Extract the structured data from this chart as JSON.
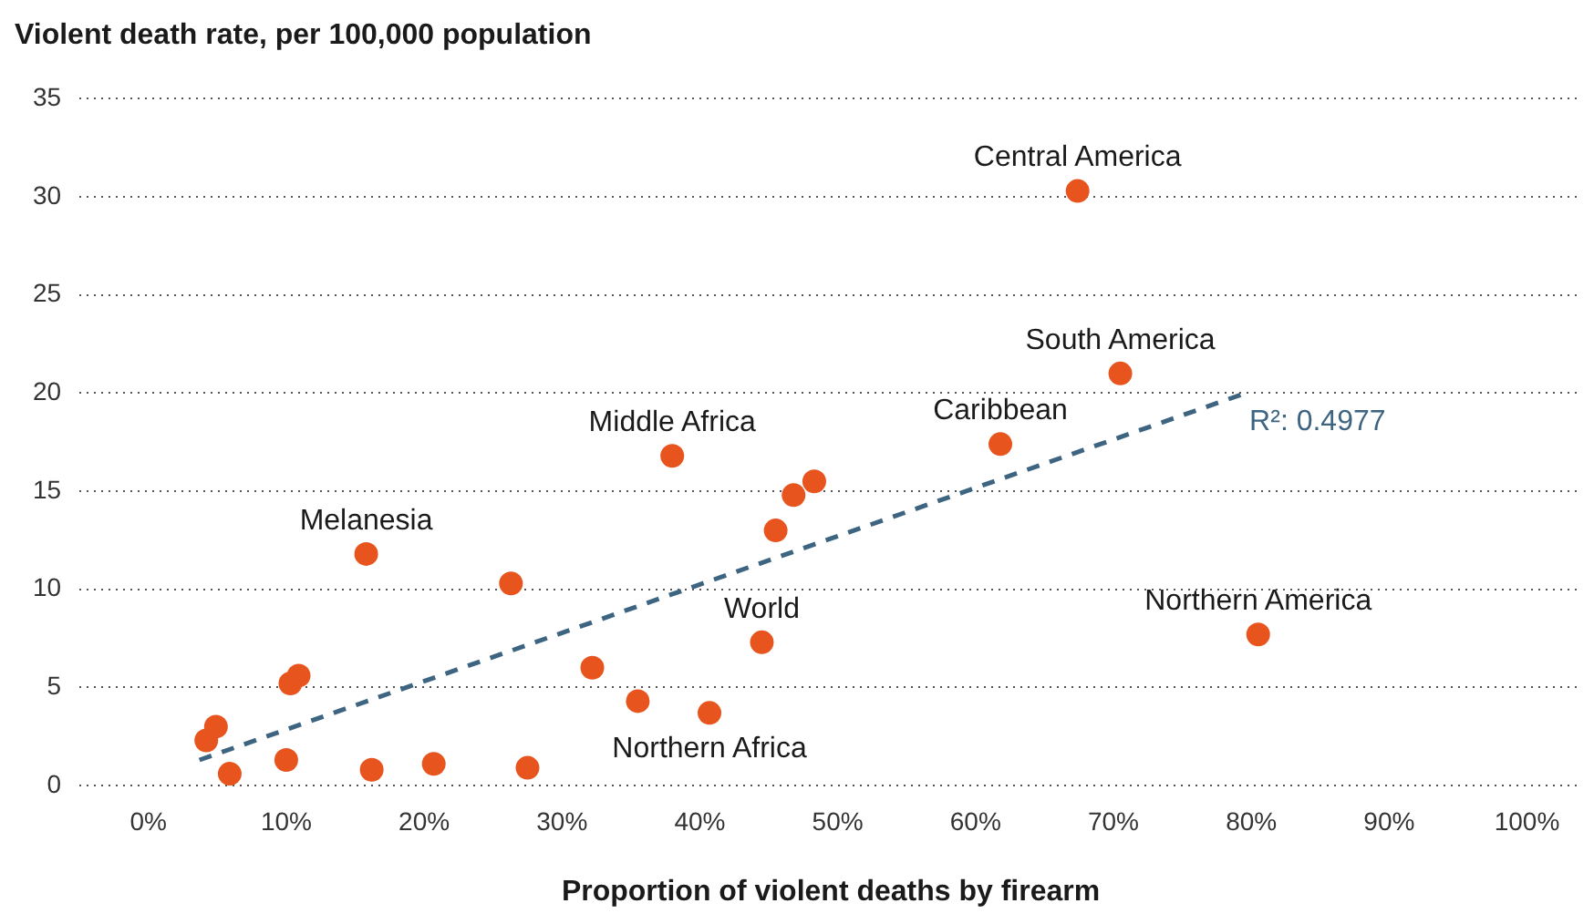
{
  "chart_data": {
    "type": "scatter",
    "ylabel": "Violent death rate, per 100,000 population",
    "xlabel": "Proportion of violent deaths by firearm",
    "xlim": [
      -5,
      104
    ],
    "ylim": [
      0,
      35
    ],
    "xticks": [
      {
        "value": 0,
        "label": "0%"
      },
      {
        "value": 10,
        "label": "10%"
      },
      {
        "value": 20,
        "label": "20%"
      },
      {
        "value": 30,
        "label": "30%"
      },
      {
        "value": 40,
        "label": "40%"
      },
      {
        "value": 50,
        "label": "50%"
      },
      {
        "value": 60,
        "label": "60%"
      },
      {
        "value": 70,
        "label": "70%"
      },
      {
        "value": 80,
        "label": "80%"
      },
      {
        "value": 90,
        "label": "90%"
      },
      {
        "value": 100,
        "label": "100%"
      }
    ],
    "yticks": [
      0,
      5,
      10,
      15,
      20,
      25,
      30,
      35
    ],
    "grid": "y",
    "legend": false,
    "series": [
      {
        "color": "#e8541e",
        "marker": "circle",
        "x": [
          4.2,
          4.9,
          5.9,
          10.0,
          10.3,
          10.9,
          15.8,
          16.2,
          20.7,
          26.3,
          27.5,
          32.2,
          35.5,
          40.7,
          38.0,
          44.5,
          45.5,
          46.8,
          48.3,
          61.8,
          67.4,
          70.5,
          80.5
        ],
        "values": [
          2.3,
          3.0,
          0.6,
          1.3,
          5.2,
          5.6,
          11.8,
          0.8,
          1.1,
          10.3,
          0.9,
          6.0,
          4.3,
          3.7,
          16.8,
          7.3,
          13.0,
          14.8,
          15.5,
          17.4,
          30.3,
          21.0,
          7.7
        ]
      },
      {
        "type": "line",
        "color": "#3d6480",
        "line_style": "dashed",
        "marker": "none",
        "x": [
          3.7,
          79.6
        ],
        "values": [
          1.3,
          20.0
        ]
      }
    ],
    "annotations": [
      {
        "text": "Central America",
        "x": 67.4,
        "y": 30.3
      },
      {
        "text": "South America",
        "x": 70.5,
        "y": 21.0
      },
      {
        "text": "Caribbean",
        "x": 61.8,
        "y": 17.4
      },
      {
        "text": "Middle Africa",
        "x": 38.0,
        "y": 16.8
      },
      {
        "text": "Melanesia",
        "x": 15.8,
        "y": 11.8
      },
      {
        "text": "World",
        "x": 44.5,
        "y": 7.3
      },
      {
        "text": "Northern America",
        "x": 80.5,
        "y": 7.7
      },
      {
        "text": "Northern Africa",
        "x": 40.7,
        "y": 3.7
      },
      "R²: 0.4977"
    ]
  }
}
